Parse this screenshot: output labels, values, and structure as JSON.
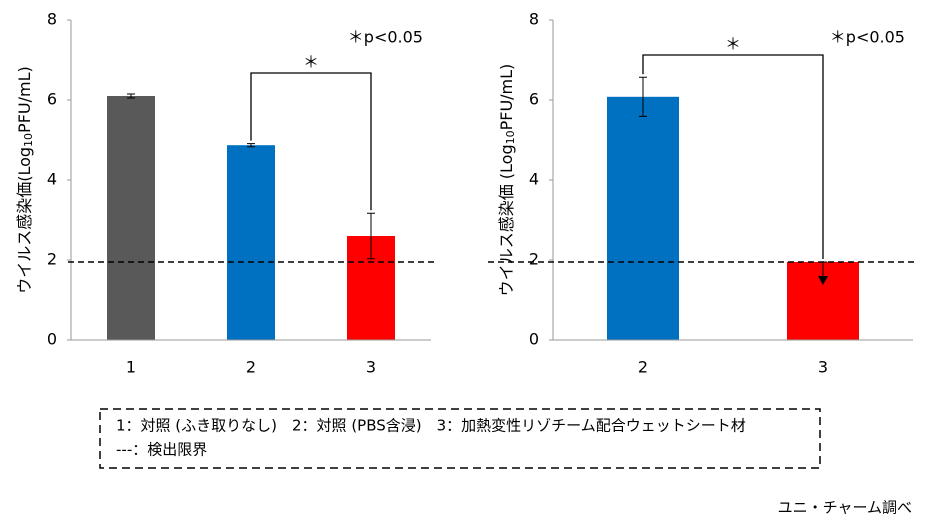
{
  "chart_data": [
    {
      "type": "bar",
      "categories": [
        "1",
        "2",
        "3"
      ],
      "values": [
        6.1,
        4.87,
        2.6
      ],
      "errors": [
        0.05,
        0.04,
        0.57
      ],
      "colors": [
        "#595959",
        "#0070c0",
        "#ff0000"
      ],
      "below_limit": [
        false,
        false,
        false
      ],
      "ylim": [
        0,
        8
      ],
      "yticks": [
        0,
        2,
        4,
        6,
        8
      ],
      "limit_line": 1.95,
      "y_label": {
        "prefix": "ウイルス感染価(Log",
        "subscript": "10",
        "suffix": "PFU/mL)"
      },
      "annotation": "＊p<0.05",
      "significance_mark": "＊"
    },
    {
      "type": "bar",
      "categories": [
        "2",
        "3"
      ],
      "values": [
        6.08,
        1.95
      ],
      "errors": [
        0.49,
        null
      ],
      "colors": [
        "#0070c0",
        "#ff0000"
      ],
      "below_limit": [
        false,
        true
      ],
      "ylim": [
        0,
        8
      ],
      "yticks": [
        0,
        2,
        4,
        6,
        8
      ],
      "limit_line": 1.95,
      "y_label": {
        "prefix": "ウイルス感染価 (Log",
        "subscript": "10",
        "suffix": "PFU/mL)"
      },
      "annotation": "＊p<0.05",
      "significance_mark": "＊"
    }
  ],
  "legend_box": {
    "lines": [
      "1：対照 (ふき取りなし)　2：対照 (PBS含浸)　3：加熱変性リゾチーム配合ウェットシート材",
      "---：検出限界"
    ]
  },
  "footer": "ユニ・チャーム調べ"
}
